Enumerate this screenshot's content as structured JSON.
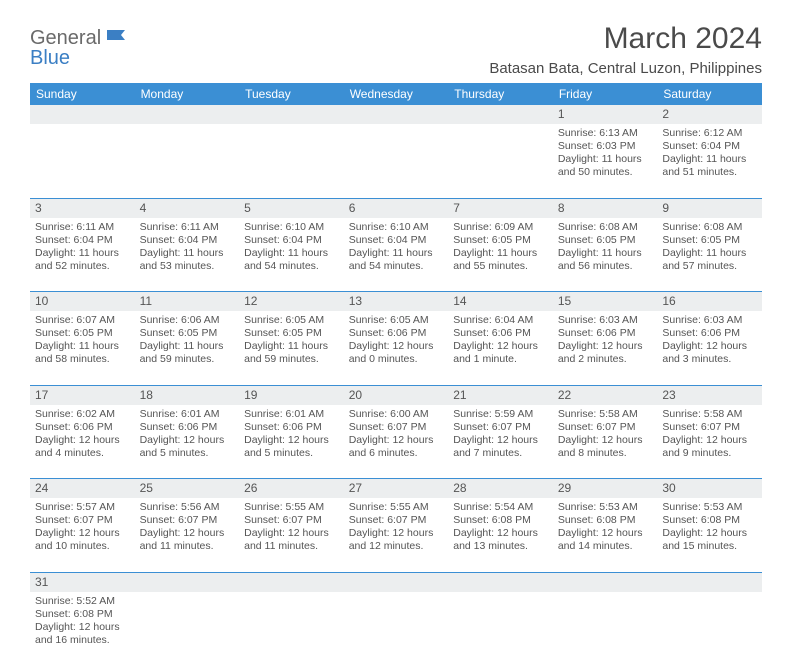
{
  "logo": {
    "part1": "General",
    "part2": "Blue"
  },
  "header": {
    "title": "March 2024",
    "location": "Batasan Bata, Central Luzon, Philippines"
  },
  "colors": {
    "header_bg": "#3b8fd4",
    "header_text": "#ffffff",
    "daynum_bg": "#eceeef",
    "cell_border": "#3b8fd4",
    "body_text": "#4a4a4a",
    "logo_gray": "#6a6a6a",
    "logo_blue": "#3b7fc4"
  },
  "typography": {
    "title_fontsize": 30,
    "location_fontsize": 15,
    "th_fontsize": 12,
    "daynum_fontsize": 12,
    "cell_fontsize": 10.5
  },
  "weekdays": [
    "Sunday",
    "Monday",
    "Tuesday",
    "Wednesday",
    "Thursday",
    "Friday",
    "Saturday"
  ],
  "weeks": [
    [
      null,
      null,
      null,
      null,
      null,
      {
        "n": "1",
        "sr": "Sunrise: 6:13 AM",
        "ss": "Sunset: 6:03 PM",
        "dl": "Daylight: 11 hours and 50 minutes."
      },
      {
        "n": "2",
        "sr": "Sunrise: 6:12 AM",
        "ss": "Sunset: 6:04 PM",
        "dl": "Daylight: 11 hours and 51 minutes."
      }
    ],
    [
      {
        "n": "3",
        "sr": "Sunrise: 6:11 AM",
        "ss": "Sunset: 6:04 PM",
        "dl": "Daylight: 11 hours and 52 minutes."
      },
      {
        "n": "4",
        "sr": "Sunrise: 6:11 AM",
        "ss": "Sunset: 6:04 PM",
        "dl": "Daylight: 11 hours and 53 minutes."
      },
      {
        "n": "5",
        "sr": "Sunrise: 6:10 AM",
        "ss": "Sunset: 6:04 PM",
        "dl": "Daylight: 11 hours and 54 minutes."
      },
      {
        "n": "6",
        "sr": "Sunrise: 6:10 AM",
        "ss": "Sunset: 6:04 PM",
        "dl": "Daylight: 11 hours and 54 minutes."
      },
      {
        "n": "7",
        "sr": "Sunrise: 6:09 AM",
        "ss": "Sunset: 6:05 PM",
        "dl": "Daylight: 11 hours and 55 minutes."
      },
      {
        "n": "8",
        "sr": "Sunrise: 6:08 AM",
        "ss": "Sunset: 6:05 PM",
        "dl": "Daylight: 11 hours and 56 minutes."
      },
      {
        "n": "9",
        "sr": "Sunrise: 6:08 AM",
        "ss": "Sunset: 6:05 PM",
        "dl": "Daylight: 11 hours and 57 minutes."
      }
    ],
    [
      {
        "n": "10",
        "sr": "Sunrise: 6:07 AM",
        "ss": "Sunset: 6:05 PM",
        "dl": "Daylight: 11 hours and 58 minutes."
      },
      {
        "n": "11",
        "sr": "Sunrise: 6:06 AM",
        "ss": "Sunset: 6:05 PM",
        "dl": "Daylight: 11 hours and 59 minutes."
      },
      {
        "n": "12",
        "sr": "Sunrise: 6:05 AM",
        "ss": "Sunset: 6:05 PM",
        "dl": "Daylight: 11 hours and 59 minutes."
      },
      {
        "n": "13",
        "sr": "Sunrise: 6:05 AM",
        "ss": "Sunset: 6:06 PM",
        "dl": "Daylight: 12 hours and 0 minutes."
      },
      {
        "n": "14",
        "sr": "Sunrise: 6:04 AM",
        "ss": "Sunset: 6:06 PM",
        "dl": "Daylight: 12 hours and 1 minute."
      },
      {
        "n": "15",
        "sr": "Sunrise: 6:03 AM",
        "ss": "Sunset: 6:06 PM",
        "dl": "Daylight: 12 hours and 2 minutes."
      },
      {
        "n": "16",
        "sr": "Sunrise: 6:03 AM",
        "ss": "Sunset: 6:06 PM",
        "dl": "Daylight: 12 hours and 3 minutes."
      }
    ],
    [
      {
        "n": "17",
        "sr": "Sunrise: 6:02 AM",
        "ss": "Sunset: 6:06 PM",
        "dl": "Daylight: 12 hours and 4 minutes."
      },
      {
        "n": "18",
        "sr": "Sunrise: 6:01 AM",
        "ss": "Sunset: 6:06 PM",
        "dl": "Daylight: 12 hours and 5 minutes."
      },
      {
        "n": "19",
        "sr": "Sunrise: 6:01 AM",
        "ss": "Sunset: 6:06 PM",
        "dl": "Daylight: 12 hours and 5 minutes."
      },
      {
        "n": "20",
        "sr": "Sunrise: 6:00 AM",
        "ss": "Sunset: 6:07 PM",
        "dl": "Daylight: 12 hours and 6 minutes."
      },
      {
        "n": "21",
        "sr": "Sunrise: 5:59 AM",
        "ss": "Sunset: 6:07 PM",
        "dl": "Daylight: 12 hours and 7 minutes."
      },
      {
        "n": "22",
        "sr": "Sunrise: 5:58 AM",
        "ss": "Sunset: 6:07 PM",
        "dl": "Daylight: 12 hours and 8 minutes."
      },
      {
        "n": "23",
        "sr": "Sunrise: 5:58 AM",
        "ss": "Sunset: 6:07 PM",
        "dl": "Daylight: 12 hours and 9 minutes."
      }
    ],
    [
      {
        "n": "24",
        "sr": "Sunrise: 5:57 AM",
        "ss": "Sunset: 6:07 PM",
        "dl": "Daylight: 12 hours and 10 minutes."
      },
      {
        "n": "25",
        "sr": "Sunrise: 5:56 AM",
        "ss": "Sunset: 6:07 PM",
        "dl": "Daylight: 12 hours and 11 minutes."
      },
      {
        "n": "26",
        "sr": "Sunrise: 5:55 AM",
        "ss": "Sunset: 6:07 PM",
        "dl": "Daylight: 12 hours and 11 minutes."
      },
      {
        "n": "27",
        "sr": "Sunrise: 5:55 AM",
        "ss": "Sunset: 6:07 PM",
        "dl": "Daylight: 12 hours and 12 minutes."
      },
      {
        "n": "28",
        "sr": "Sunrise: 5:54 AM",
        "ss": "Sunset: 6:08 PM",
        "dl": "Daylight: 12 hours and 13 minutes."
      },
      {
        "n": "29",
        "sr": "Sunrise: 5:53 AM",
        "ss": "Sunset: 6:08 PM",
        "dl": "Daylight: 12 hours and 14 minutes."
      },
      {
        "n": "30",
        "sr": "Sunrise: 5:53 AM",
        "ss": "Sunset: 6:08 PM",
        "dl": "Daylight: 12 hours and 15 minutes."
      }
    ],
    [
      {
        "n": "31",
        "sr": "Sunrise: 5:52 AM",
        "ss": "Sunset: 6:08 PM",
        "dl": "Daylight: 12 hours and 16 minutes."
      },
      null,
      null,
      null,
      null,
      null,
      null
    ]
  ]
}
